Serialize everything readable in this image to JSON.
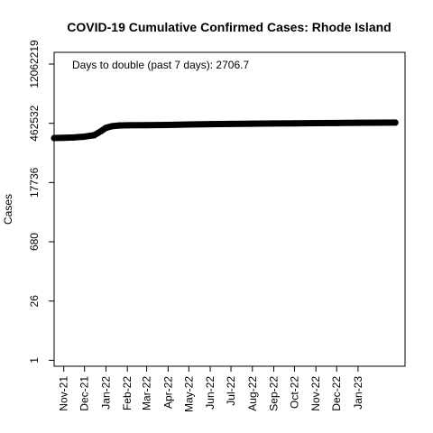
{
  "chart_data": {
    "type": "line",
    "title": "COVID-19 Cumulative Confirmed Cases: Rhode Island",
    "xlabel": "",
    "ylabel": "Cases",
    "y_scale": "log",
    "y_ticks": [
      1,
      26,
      680,
      17736,
      462532,
      12062219
    ],
    "y_tick_labels": [
      "1",
      "26",
      "680",
      "17736",
      "462532",
      "12062219"
    ],
    "ylim": [
      0.72,
      23000000
    ],
    "xlim": [
      "2021-10-18",
      "2023-03-10"
    ],
    "x_ticks": [
      "2021-11-01",
      "2021-12-01",
      "2022-01-01",
      "2022-02-01",
      "2022-03-01",
      "2022-04-01",
      "2022-05-01",
      "2022-06-01",
      "2022-07-01",
      "2022-08-01",
      "2022-09-01",
      "2022-10-01",
      "2022-11-01",
      "2022-12-01",
      "2023-01-01"
    ],
    "x_tick_labels": [
      "Nov-21",
      "Dec-21",
      "Jan-22",
      "Feb-22",
      "Mar-22",
      "Apr-22",
      "May-22",
      "Jun-22",
      "Jul-22",
      "Aug-22",
      "Sep-22",
      "Oct-22",
      "Nov-22",
      "Dec-22",
      "Jan-23"
    ],
    "annotation": "Days to double (past 7 days): 2706.7",
    "legend": "none",
    "grid": false,
    "series": [
      {
        "color": "#000000",
        "points": [
          [
            "2021-10-18",
            205000
          ],
          [
            "2021-11-01",
            208000
          ],
          [
            "2021-11-15",
            212000
          ],
          [
            "2021-12-01",
            222000
          ],
          [
            "2021-12-15",
            240000
          ],
          [
            "2021-12-25",
            300000
          ],
          [
            "2022-01-01",
            360000
          ],
          [
            "2022-01-10",
            395000
          ],
          [
            "2022-01-20",
            410000
          ],
          [
            "2022-02-01",
            415000
          ],
          [
            "2022-03-01",
            418000
          ],
          [
            "2022-04-01",
            422000
          ],
          [
            "2022-05-01",
            432000
          ],
          [
            "2022-06-01",
            440000
          ],
          [
            "2022-07-01",
            447000
          ],
          [
            "2022-08-01",
            453000
          ],
          [
            "2022-09-01",
            458000
          ],
          [
            "2022-10-01",
            462000
          ],
          [
            "2022-11-01",
            466000
          ],
          [
            "2022-12-01",
            470000
          ],
          [
            "2023-01-01",
            474000
          ],
          [
            "2023-02-01",
            478000
          ],
          [
            "2023-02-24",
            480000
          ]
        ]
      }
    ]
  }
}
